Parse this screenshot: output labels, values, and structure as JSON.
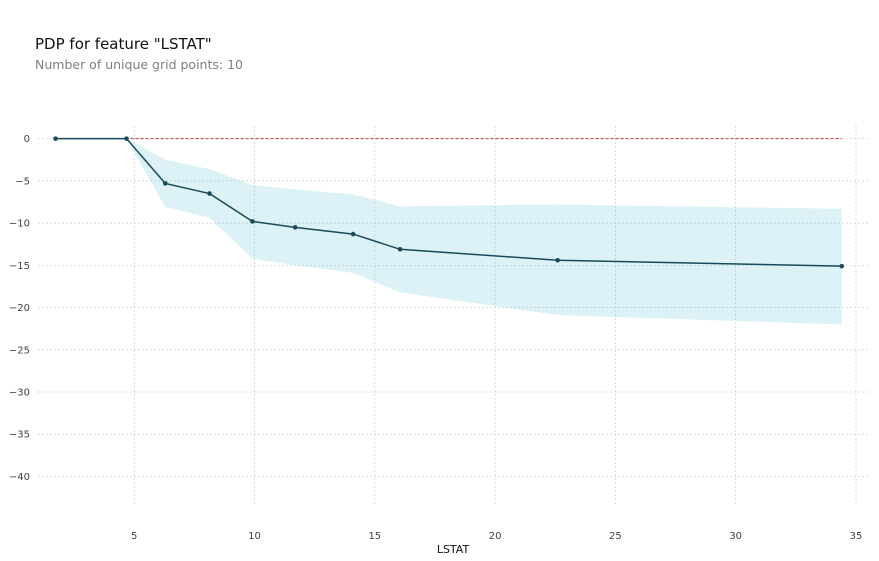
{
  "chart_data": {
    "type": "line",
    "title": "PDP for feature \"LSTAT\"",
    "subtitle": "Number of unique grid points: 10",
    "xlabel": "LSTAT",
    "ylabel": "",
    "xlim": [
      1.0,
      35.5
    ],
    "ylim": [
      -43.5,
      1.5
    ],
    "x_ticks": [
      5,
      10,
      15,
      20,
      25,
      30,
      35
    ],
    "y_ticks": [
      0,
      -5,
      -10,
      -15,
      -20,
      -25,
      -30,
      -35,
      -40
    ],
    "grid": true,
    "legend": "none",
    "baseline": 0,
    "x": [
      1.73,
      4.68,
      6.29,
      8.13,
      9.91,
      11.69,
      14.1,
      16.05,
      22.6,
      34.41
    ],
    "y": [
      0,
      0,
      -5.3,
      -6.5,
      -9.8,
      -10.5,
      -11.3,
      -13.1,
      -14.4,
      -15.1
    ],
    "band_upper": [
      0,
      0,
      -2.5,
      -3.6,
      -5.5,
      -6.0,
      -6.6,
      -8.0,
      -7.8,
      -8.3
    ],
    "band_lower": [
      0,
      0,
      -8.1,
      -9.4,
      -14.2,
      -15.0,
      -15.9,
      -18.2,
      -20.9,
      -22.0
    ],
    "colors": {
      "line": "#1a4a5a",
      "marker": "#1a4a5a",
      "band": "#66c2d7",
      "baseline": "#c0392b",
      "grid": "#cccccc"
    }
  }
}
